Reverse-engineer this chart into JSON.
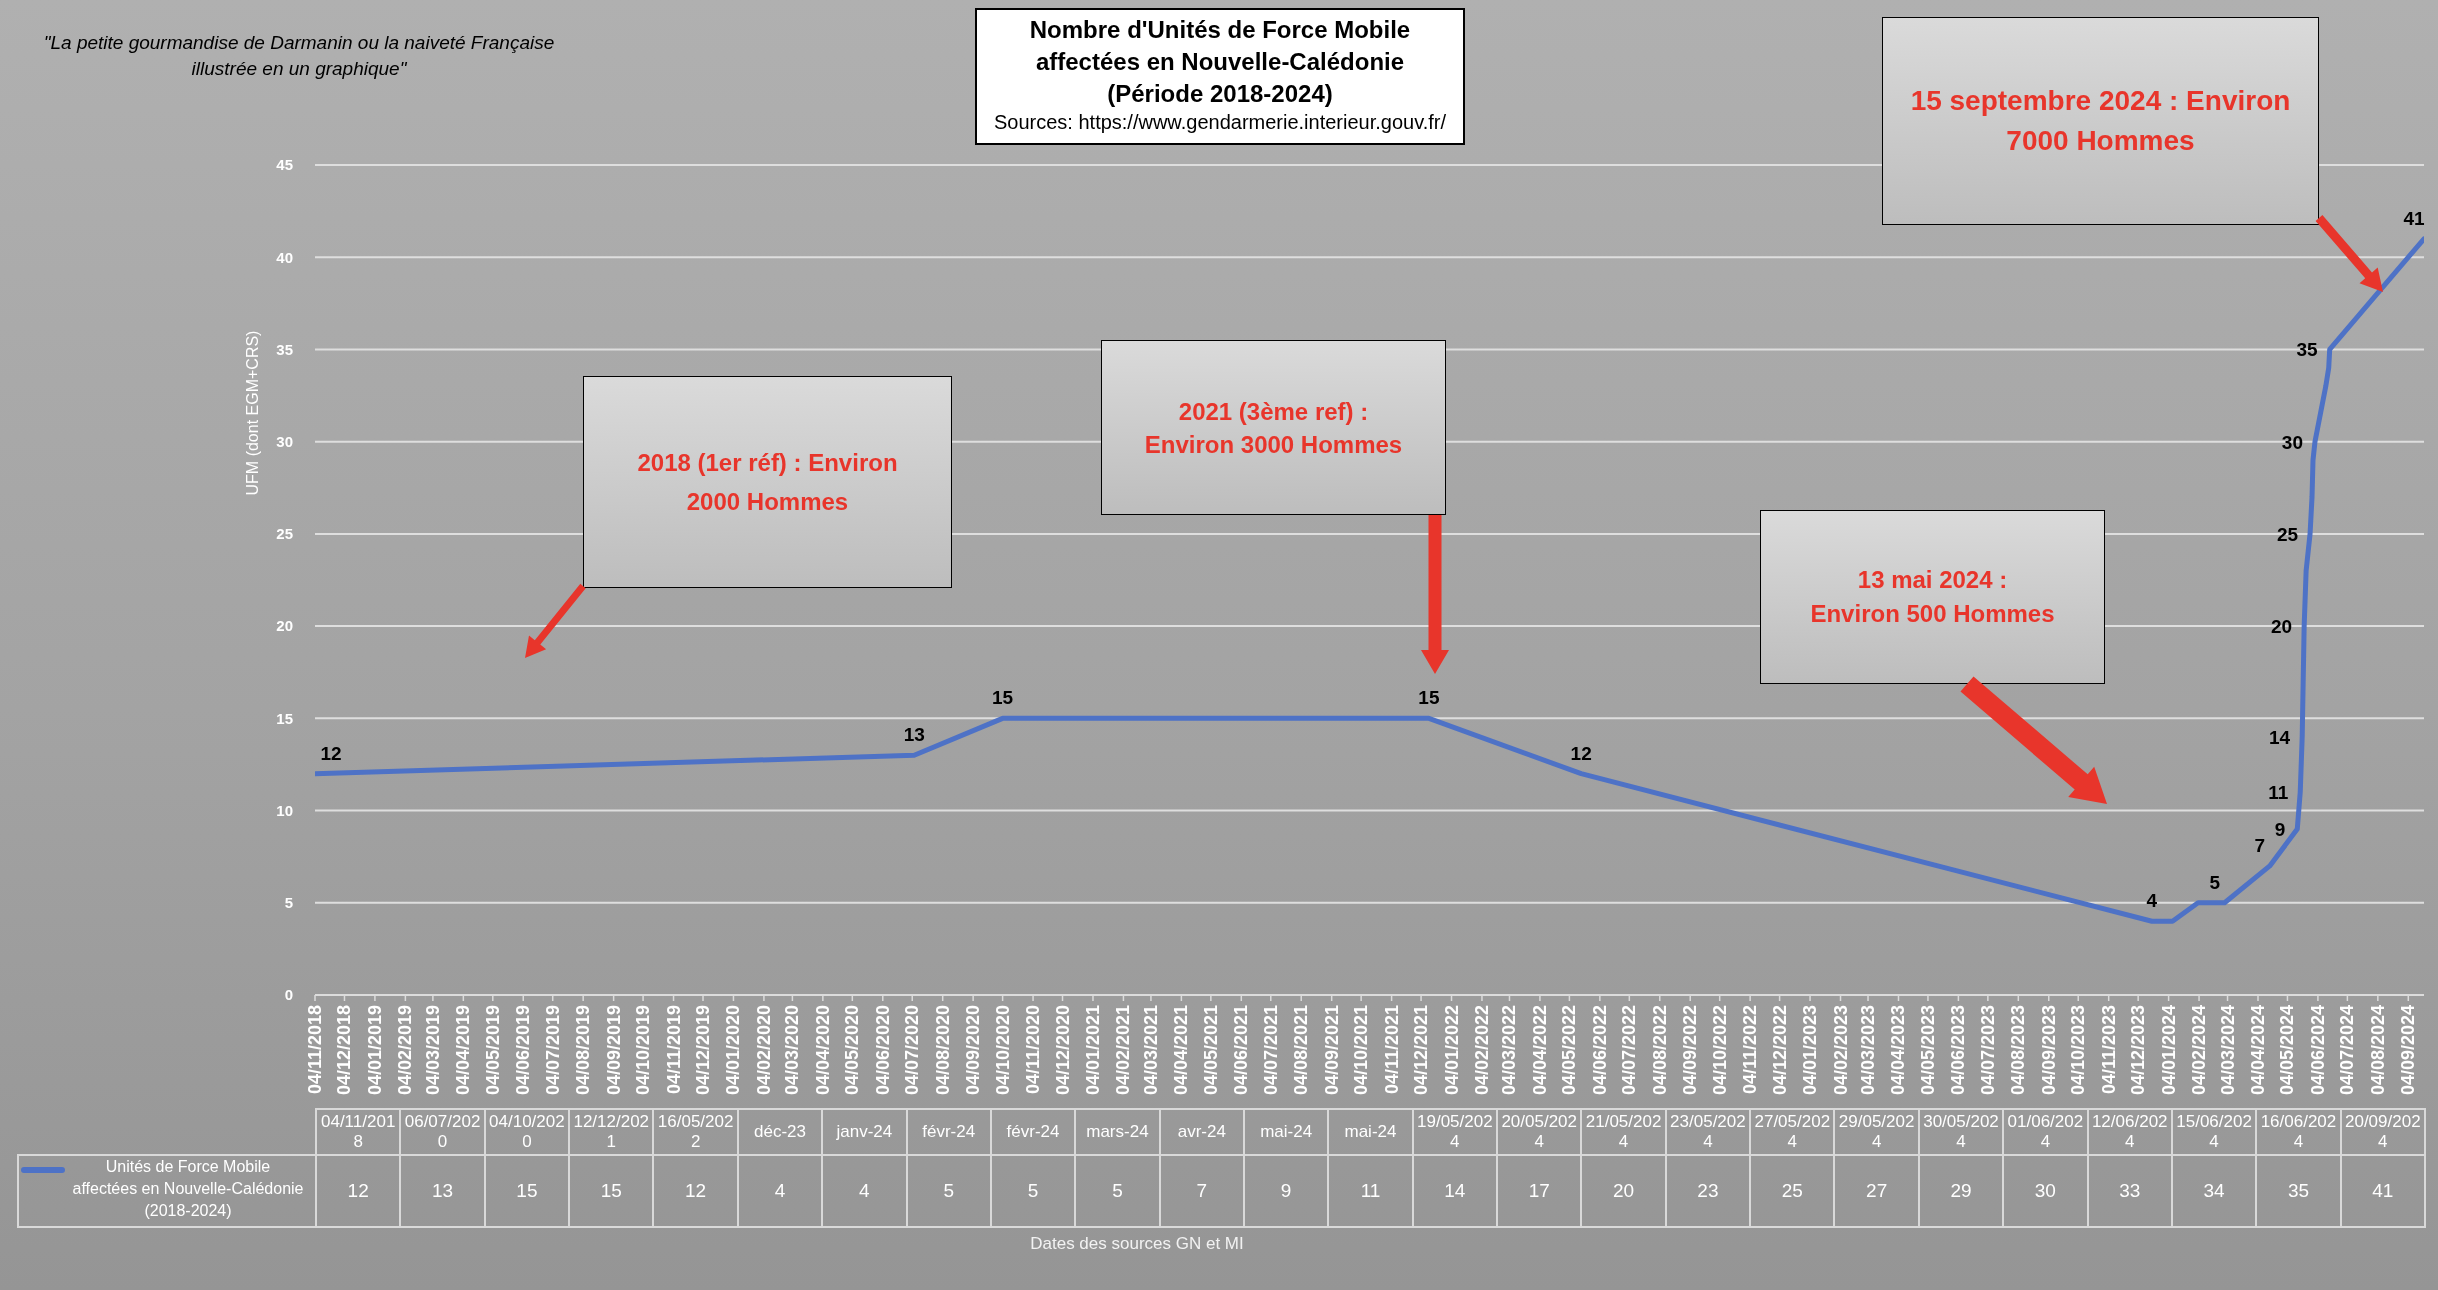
{
  "chart_data": [
    {
      "type": "line",
      "title": "Nombre d'Unités de Force Mobile affectées en Nouvelle-Calédonie (Période 2018-2024)",
      "xlabel": "Dates des sources GN et MI",
      "ylabel": "UFM (dont EGM+CRS)",
      "annotations": [
        "\"La petite gourmandise de Darmanin ou la naiveté Française illustrée en un graphique\"",
        "Sources: https://www.gendarmerie.interieur.gouv.fr/",
        "2018 (1er réf) : Environ\n2000 Hommes",
        "2021 (3ème ref) :\nEnviron 3000 Hommes",
        "13 mai 2024 :\nEnviron 500 Hommes",
        "15 septembre 2024 : Environ\n7000 Hommes"
      ],
      "x": [
        "2018-11-04",
        "2020-07-06",
        "2020-10-04",
        "2021-12-12",
        "2022-05-16",
        "2023-12-18",
        "2024-01-08",
        "2024-02-03",
        "2024-02-20",
        "2024-03-01",
        "2024-04-16",
        "2024-05-14",
        "2024-05-17",
        "2024-05-19",
        "2024-05-20",
        "2024-05-21",
        "2024-05-23",
        "2024-05-27",
        "2024-05-29",
        "2024-05-30",
        "2024-06-01",
        "2024-06-12",
        "2024-06-15",
        "2024-06-16",
        "2024-09-20"
      ],
      "series": [
        {
          "name": "Unités de Force Mobile affectées en Nouvelle-Calédonie (2018-2024)",
          "color": "#4e72c6",
          "values": [
            12,
            13,
            15,
            15,
            12,
            4,
            4,
            5,
            5,
            5,
            7,
            9,
            11,
            14,
            17,
            20,
            23,
            25,
            27,
            29,
            30,
            33,
            34,
            35,
            41
          ],
          "value_labels": [
            "12",
            "13",
            "15",
            "15",
            "12",
            "4",
            null,
            null,
            "5",
            null,
            "7",
            "9",
            "11",
            "14",
            null,
            "20",
            null,
            "25",
            null,
            null,
            "30",
            null,
            null,
            "35",
            "41"
          ]
        }
      ],
      "xlim": [
        "2018-11-04",
        "2024-09-20"
      ],
      "xticks": [
        {
          "value": "2018-11-04",
          "label": "04/11/2018"
        },
        {
          "value": "2018-12-04",
          "label": "04/12/2018"
        },
        {
          "value": "2019-01-04",
          "label": "04/01/2019"
        },
        {
          "value": "2019-02-04",
          "label": "04/02/2019"
        },
        {
          "value": "2019-03-04",
          "label": "04/03/2019"
        },
        {
          "value": "2019-04-04",
          "label": "04/04/2019"
        },
        {
          "value": "2019-05-04",
          "label": "04/05/2019"
        },
        {
          "value": "2019-06-04",
          "label": "04/06/2019"
        },
        {
          "value": "2019-07-04",
          "label": "04/07/2019"
        },
        {
          "value": "2019-08-04",
          "label": "04/08/2019"
        },
        {
          "value": "2019-09-04",
          "label": "04/09/2019"
        },
        {
          "value": "2019-10-04",
          "label": "04/10/2019"
        },
        {
          "value": "2019-11-04",
          "label": "04/11/2019"
        },
        {
          "value": "2019-12-04",
          "label": "04/12/2019"
        },
        {
          "value": "2020-01-04",
          "label": "04/01/2020"
        },
        {
          "value": "2020-02-04",
          "label": "04/02/2020"
        },
        {
          "value": "2020-03-04",
          "label": "04/03/2020"
        },
        {
          "value": "2020-04-04",
          "label": "04/04/2020"
        },
        {
          "value": "2020-05-04",
          "label": "04/05/2020"
        },
        {
          "value": "2020-06-04",
          "label": "04/06/2020"
        },
        {
          "value": "2020-07-04",
          "label": "04/07/2020"
        },
        {
          "value": "2020-08-04",
          "label": "04/08/2020"
        },
        {
          "value": "2020-09-04",
          "label": "04/09/2020"
        },
        {
          "value": "2020-10-04",
          "label": "04/10/2020"
        },
        {
          "value": "2020-11-04",
          "label": "04/11/2020"
        },
        {
          "value": "2020-12-04",
          "label": "04/12/2020"
        },
        {
          "value": "2021-01-04",
          "label": "04/01/2021"
        },
        {
          "value": "2021-02-04",
          "label": "04/02/2021"
        },
        {
          "value": "2021-03-04",
          "label": "04/03/2021"
        },
        {
          "value": "2021-04-04",
          "label": "04/04/2021"
        },
        {
          "value": "2021-05-04",
          "label": "04/05/2021"
        },
        {
          "value": "2021-06-04",
          "label": "04/06/2021"
        },
        {
          "value": "2021-07-04",
          "label": "04/07/2021"
        },
        {
          "value": "2021-08-04",
          "label": "04/08/2021"
        },
        {
          "value": "2021-09-04",
          "label": "04/09/2021"
        },
        {
          "value": "2021-10-04",
          "label": "04/10/2021"
        },
        {
          "value": "2021-11-04",
          "label": "04/11/2021"
        },
        {
          "value": "2021-12-04",
          "label": "04/12/2021"
        },
        {
          "value": "2022-01-04",
          "label": "04/01/2022"
        },
        {
          "value": "2022-02-04",
          "label": "04/02/2022"
        },
        {
          "value": "2022-03-04",
          "label": "04/03/2022"
        },
        {
          "value": "2022-04-04",
          "label": "04/04/2022"
        },
        {
          "value": "2022-05-04",
          "label": "04/05/2022"
        },
        {
          "value": "2022-06-04",
          "label": "04/06/2022"
        },
        {
          "value": "2022-07-04",
          "label": "04/07/2022"
        },
        {
          "value": "2022-08-04",
          "label": "04/08/2022"
        },
        {
          "value": "2022-09-04",
          "label": "04/09/2022"
        },
        {
          "value": "2022-10-04",
          "label": "04/10/2022"
        },
        {
          "value": "2022-11-04",
          "label": "04/11/2022"
        },
        {
          "value": "2022-12-04",
          "label": "04/12/2022"
        },
        {
          "value": "2023-01-04",
          "label": "04/01/2023"
        },
        {
          "value": "2023-02-04",
          "label": "04/02/2023"
        },
        {
          "value": "2023-03-04",
          "label": "04/03/2023"
        },
        {
          "value": "2023-04-04",
          "label": "04/04/2023"
        },
        {
          "value": "2023-05-04",
          "label": "04/05/2023"
        },
        {
          "value": "2023-06-04",
          "label": "04/06/2023"
        },
        {
          "value": "2023-07-04",
          "label": "04/07/2023"
        },
        {
          "value": "2023-08-04",
          "label": "04/08/2023"
        },
        {
          "value": "2023-09-04",
          "label": "04/09/2023"
        },
        {
          "value": "2023-10-04",
          "label": "04/10/2023"
        },
        {
          "value": "2023-11-04",
          "label": "04/11/2023"
        },
        {
          "value": "2023-12-04",
          "label": "04/12/2023"
        },
        {
          "value": "2024-01-04",
          "label": "04/01/2024"
        },
        {
          "value": "2024-02-04",
          "label": "04/02/2024"
        },
        {
          "value": "2024-03-04",
          "label": "04/03/2024"
        },
        {
          "value": "2024-04-04",
          "label": "04/04/2024"
        },
        {
          "value": "2024-05-04",
          "label": "04/05/2024"
        },
        {
          "value": "2024-06-04",
          "label": "04/06/2024"
        },
        {
          "value": "2024-07-04",
          "label": "04/07/2024"
        },
        {
          "value": "2024-08-04",
          "label": "04/08/2024"
        },
        {
          "value": "2024-09-04",
          "label": "04/09/2024"
        }
      ],
      "ylim": [
        0,
        45
      ],
      "yticks": [
        0,
        5,
        10,
        15,
        20,
        25,
        30,
        35,
        40,
        45
      ],
      "grid": "y",
      "legend": "bottom left"
    },
    {
      "type": "other",
      "categories": [
        "04/11/2018",
        "06/07/2020",
        "04/10/2020",
        "12/12/2021",
        "16/05/2022",
        "déc-23",
        "janv-24",
        "févr-24",
        "févr-24",
        "mars-24",
        "avr-24",
        "mai-24",
        "mai-24",
        "19/05/2024",
        "20/05/2024",
        "21/05/2024",
        "23/05/2024",
        "27/05/2024",
        "29/05/2024",
        "30/05/2024",
        "01/06/2024",
        "12/06/2024",
        "15/06/2024",
        "16/06/2024",
        "20/09/2024"
      ],
      "values": [
        12,
        13,
        15,
        15,
        12,
        4,
        4,
        5,
        5,
        5,
        7,
        9,
        11,
        14,
        17,
        20,
        23,
        25,
        27,
        29,
        30,
        33,
        34,
        35,
        41
      ],
      "data_labels": true
    }
  ]
}
